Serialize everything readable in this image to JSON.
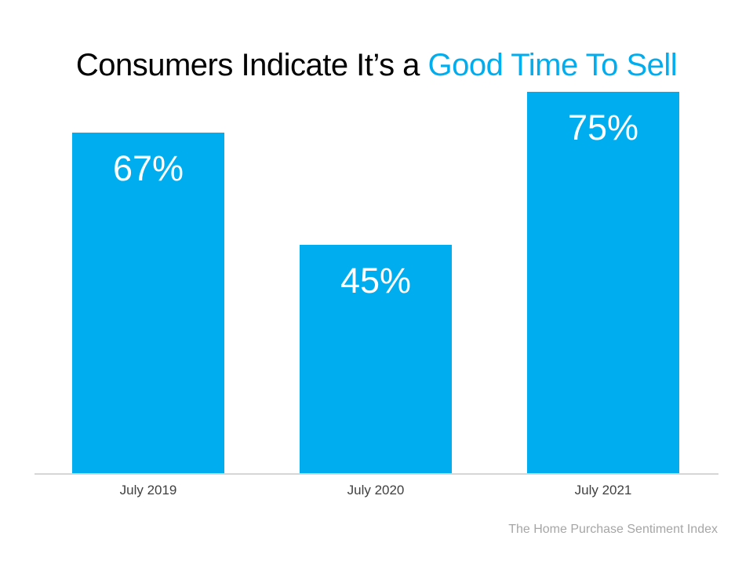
{
  "title": {
    "black_part": "Consumers Indicate It’s a ",
    "blue_part": "Good Time To Sell"
  },
  "footer": "The Home Purchase Sentiment Index",
  "colors": {
    "accent_blue": "#00AEF0",
    "bar_fill": "#00AEF0",
    "value_label": "#FFFFFF",
    "axis_label": "#3F3F3F",
    "baseline": "#D6D6D6",
    "footer_text": "#A6A6A6"
  },
  "chart_data": {
    "type": "bar",
    "title": "Consumers Indicate It’s a Good Time To Sell",
    "categories": [
      "July 2019",
      "July 2020",
      "July 2021"
    ],
    "values": [
      67,
      45,
      75
    ],
    "value_labels": [
      "67%",
      "45%",
      "75%"
    ],
    "xlabel": "",
    "ylabel": "",
    "ylim": [
      0,
      93
    ],
    "grid": false,
    "legend": false,
    "bar_color": "#00AEF0",
    "value_label_position": "inside-top",
    "source_note": "The Home Purchase Sentiment Index"
  }
}
